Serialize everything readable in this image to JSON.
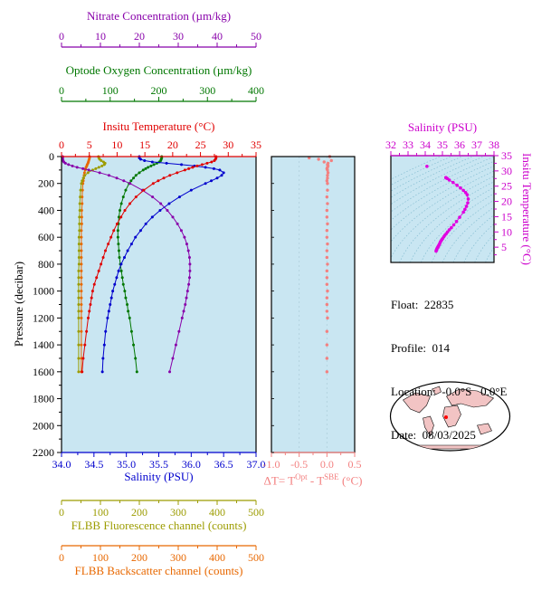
{
  "titles": {
    "nitrate": "Nitrate Concentration (µm/kg)",
    "oxygen": "Optode Oxygen Concentration (µm/kg)",
    "temperature": "Insitu Temperature (°C)",
    "salinity_bottom": "Salinity (PSU)",
    "fluorescence": "FLBB Fluorescence channel (counts)",
    "backscatter": "FLBB Backscatter channel (counts)",
    "pressure": "Pressure (decibar)",
    "ts_salinity": "Salinity (PSU)",
    "ts_temperature": "Insitu Temperature (°C)"
  },
  "deltaT_label": {
    "p1": "ΔT= T",
    "sup1": "Opt",
    "p2": " - T",
    "sup2": "SBE",
    "p3": " (°C)"
  },
  "info": {
    "float": "Float:  22835",
    "profile": "Profile:  014",
    "location": "Location:  -0.0°S   0.0°E",
    "date": "Date:  08/03/2025"
  },
  "colors": {
    "plot_bg": "#c9e6f2",
    "contour": "#85bdd1",
    "grid": "#b0cfdd",
    "land": "#f2c4c4",
    "map_ocean": "#ffffff",
    "marker": "#ff0000"
  },
  "axes": {
    "nitrate": {
      "color": "#8800aa",
      "lim": [
        0,
        50
      ],
      "ticks": [
        0,
        10,
        20,
        30,
        40,
        50
      ]
    },
    "oxygen": {
      "color": "#007700",
      "lim": [
        0,
        400
      ],
      "ticks": [
        0,
        100,
        200,
        300,
        400
      ]
    },
    "temperature": {
      "color": "#e00000",
      "lim": [
        0,
        35
      ],
      "ticks": [
        0,
        5,
        10,
        15,
        20,
        25,
        30,
        35
      ]
    },
    "salinity": {
      "color": "#0000cd",
      "lim": [
        34,
        37
      ],
      "ticks": [
        34,
        34.5,
        35,
        35.5,
        36,
        36.5,
        37
      ],
      "tick_labels": [
        "34.0",
        "34.5",
        "35.0",
        "35.5",
        "36.0",
        "36.5",
        "37.0"
      ]
    },
    "fluorescence": {
      "color": "#9c9c00",
      "lim": [
        0,
        500
      ],
      "ticks": [
        0,
        100,
        200,
        300,
        400,
        500
      ]
    },
    "backscatter": {
      "color": "#e86800",
      "lim": [
        0,
        500
      ],
      "ticks": [
        0,
        100,
        200,
        300,
        400,
        500
      ]
    },
    "pressure": {
      "color": "#000000",
      "lim": [
        0,
        2200
      ],
      "ticks": [
        0,
        200,
        400,
        600,
        800,
        1000,
        1200,
        1400,
        1600,
        1800,
        2000,
        2200
      ]
    },
    "delta_t": {
      "color": "#f38080",
      "lim": [
        -1,
        0.5
      ],
      "ticks": [
        -1,
        -0.5,
        0,
        0.5
      ],
      "tick_labels": [
        "-1.0",
        "-0.5",
        "0.0",
        "0.5"
      ]
    },
    "ts_salinity": {
      "color": "#cc00cc",
      "lim": [
        32,
        38
      ],
      "ticks": [
        32,
        33,
        34,
        35,
        36,
        37,
        38
      ]
    },
    "ts_temperature": {
      "color": "#cc00cc",
      "lim": [
        0,
        35
      ],
      "ticks": [
        5,
        10,
        15,
        20,
        25,
        30,
        35
      ]
    }
  },
  "chart_data": [
    {
      "type": "line",
      "name": "profile-panel",
      "ylabel": "Pressure (decibar)",
      "ylim": [
        0,
        2200
      ],
      "y_inverted": true,
      "pressure": [
        0,
        10,
        20,
        30,
        40,
        50,
        60,
        70,
        80,
        90,
        100,
        120,
        140,
        160,
        180,
        200,
        250,
        300,
        350,
        400,
        450,
        500,
        550,
        600,
        650,
        700,
        750,
        800,
        850,
        900,
        950,
        1000,
        1050,
        1100,
        1150,
        1200,
        1300,
        1400,
        1500,
        1600
      ],
      "series": [
        {
          "key": "temperature",
          "name": "Insitu Temperature (°C)",
          "color": "#e00000",
          "xlim": [
            0,
            35
          ],
          "values": [
            27.8,
            27.8,
            27.7,
            27.5,
            27.0,
            26.2,
            25.3,
            24.4,
            23.6,
            22.9,
            22.2,
            20.8,
            19.5,
            18.4,
            17.4,
            16.5,
            14.8,
            13.4,
            12.3,
            11.4,
            10.7,
            10.0,
            9.4,
            8.9,
            8.4,
            7.9,
            7.5,
            7.1,
            6.7,
            6.3,
            5.9,
            5.6,
            5.4,
            5.2,
            5.0,
            4.8,
            4.5,
            4.2,
            3.9,
            3.7
          ]
        },
        {
          "key": "salinity",
          "name": "Salinity (PSU)",
          "color": "#0000cd",
          "xlim": [
            34,
            37
          ],
          "values": [
            35.2,
            35.2,
            35.22,
            35.28,
            35.4,
            35.62,
            35.85,
            36.05,
            36.22,
            36.35,
            36.44,
            36.5,
            36.47,
            36.4,
            36.31,
            36.22,
            36.0,
            35.82,
            35.66,
            35.52,
            35.4,
            35.3,
            35.22,
            35.14,
            35.08,
            35.02,
            34.97,
            34.92,
            34.88,
            34.85,
            34.82,
            34.79,
            34.77,
            34.75,
            34.73,
            34.71,
            34.68,
            34.66,
            34.64,
            34.63
          ]
        },
        {
          "key": "oxygen",
          "name": "Optode Oxygen Concentration (µm/kg)",
          "color": "#007700",
          "xlim": [
            0,
            400
          ],
          "values": [
            206,
            206,
            205,
            204,
            201,
            196,
            190,
            184,
            178,
            173,
            168,
            160,
            153,
            148,
            143,
            139,
            132,
            127,
            123,
            120,
            118,
            117,
            116,
            116,
            117,
            118,
            119,
            121,
            123,
            125,
            127,
            130,
            132,
            135,
            137,
            140,
            144,
            148,
            152,
            155
          ]
        },
        {
          "key": "nitrate",
          "name": "Nitrate Concentration (µm/kg)",
          "color": "#8800aa",
          "xlim": [
            0,
            50
          ],
          "values": [
            0.3,
            0.3,
            0.3,
            0.4,
            0.6,
            1.0,
            1.8,
            2.8,
            4.0,
            5.5,
            7.0,
            9.8,
            12.2,
            14.2,
            16.0,
            17.6,
            20.8,
            23.4,
            25.5,
            27.2,
            28.6,
            29.8,
            30.8,
            31.6,
            32.2,
            32.6,
            32.9,
            33.0,
            33.0,
            32.9,
            32.7,
            32.4,
            32.1,
            31.8,
            31.4,
            31.0,
            30.2,
            29.4,
            28.6,
            27.8
          ]
        },
        {
          "key": "fluorescence",
          "name": "FLBB Fluorescence channel (counts)",
          "color": "#9c9c00",
          "xlim": [
            0,
            500
          ],
          "values": [
            95,
            96,
            98,
            102,
            108,
            112,
            110,
            104,
            96,
            88,
            80,
            68,
            60,
            56,
            53,
            51,
            49,
            48,
            47,
            47,
            46,
            46,
            46,
            45,
            45,
            45,
            45,
            45,
            44,
            44,
            44,
            44,
            44,
            44,
            44,
            44,
            44,
            44,
            44,
            44
          ]
        },
        {
          "key": "backscatter",
          "name": "FLBB Backscatter channel (counts)",
          "color": "#e86800",
          "xlim": [
            0,
            500
          ],
          "values": [
            72,
            72,
            71,
            70,
            69,
            68,
            66,
            65,
            63,
            62,
            61,
            59,
            58,
            57,
            56,
            55,
            54,
            53,
            53,
            52,
            52,
            52,
            51,
            51,
            51,
            51,
            51,
            51,
            51,
            51,
            51,
            51,
            51,
            51,
            51,
            51,
            51,
            51,
            51,
            51
          ]
        }
      ]
    },
    {
      "type": "scatter",
      "name": "delta-t-panel",
      "xlabel": "ΔT= TOpt - TSBE (°C)",
      "xlim": [
        -1,
        0.5
      ],
      "ylim": [
        0,
        2200
      ],
      "y_inverted": true,
      "color": "#f38080",
      "pressure": [
        0,
        10,
        20,
        30,
        40,
        50,
        60,
        70,
        80,
        90,
        100,
        120,
        140,
        160,
        180,
        200,
        250,
        300,
        350,
        400,
        450,
        500,
        550,
        600,
        650,
        700,
        750,
        800,
        850,
        900,
        950,
        1000,
        1050,
        1100,
        1150,
        1200,
        1300,
        1400,
        1500,
        1600
      ],
      "values": [
        0.05,
        -0.32,
        -0.15,
        0.08,
        -0.05,
        0.02,
        0.01,
        0.02,
        0.01,
        0.0,
        0.01,
        0.02,
        0.01,
        0.01,
        0.0,
        0.01,
        0.01,
        0.0,
        0.01,
        0.0,
        0.0,
        0.01,
        0.0,
        0.0,
        0.01,
        0.0,
        0.0,
        0.01,
        0.0,
        0.0,
        0.0,
        0.01,
        0.0,
        0.0,
        0.0,
        0.01,
        0.0,
        0.0,
        0.0,
        0.0
      ]
    },
    {
      "type": "scatter",
      "name": "ts-diagram",
      "xlabel": "Salinity (PSU)",
      "ylabel": "Insitu Temperature (°C)",
      "xlim": [
        32,
        38
      ],
      "ylim": [
        0,
        35
      ],
      "color": "#e000e0",
      "salinity": [
        34.1,
        35.2,
        35.2,
        35.22,
        35.28,
        35.4,
        35.62,
        35.85,
        36.05,
        36.22,
        36.35,
        36.44,
        36.5,
        36.47,
        36.4,
        36.31,
        36.22,
        36.0,
        35.82,
        35.66,
        35.52,
        35.4,
        35.3,
        35.22,
        35.14,
        35.08,
        35.02,
        34.97,
        34.92,
        34.88,
        34.85,
        34.82,
        34.79,
        34.77,
        34.75,
        34.73,
        34.71,
        34.68,
        34.66,
        34.64,
        34.63
      ],
      "temperature": [
        31.5,
        27.8,
        27.8,
        27.7,
        27.5,
        27.0,
        26.2,
        25.3,
        24.4,
        23.6,
        22.9,
        22.2,
        20.8,
        19.5,
        18.4,
        17.4,
        16.5,
        14.8,
        13.4,
        12.3,
        11.4,
        10.7,
        10.0,
        9.4,
        8.9,
        8.4,
        7.9,
        7.5,
        7.1,
        6.7,
        6.3,
        5.9,
        5.6,
        5.4,
        5.2,
        5.0,
        4.8,
        4.5,
        4.2,
        3.9,
        3.7
      ]
    }
  ]
}
